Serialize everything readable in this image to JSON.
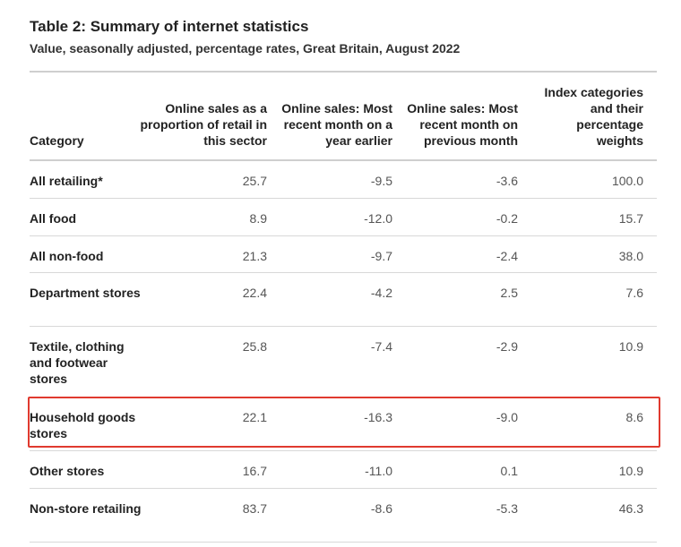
{
  "title": "Table 2: Summary of internet statistics",
  "subtitle": "Value, seasonally adjusted, percentage rates, Great Britain, August 2022",
  "table": {
    "headers": {
      "category": "Category",
      "col1": "Online sales as a proportion of retail in this sector",
      "col2": "Online sales: Most recent month on a year earlier",
      "col3": "Online sales: Most recent month on previous month",
      "col4": "Index categories and their percentage weights"
    },
    "rows": [
      {
        "category": "All retailing*",
        "col1": "25.7",
        "col2": "-9.5",
        "col3": "-3.6",
        "col4": "100.0"
      },
      {
        "category": "All food",
        "col1": "8.9",
        "col2": "-12.0",
        "col3": "-0.2",
        "col4": "15.7"
      },
      {
        "category": "All non-food",
        "col1": "21.3",
        "col2": "-9.7",
        "col3": "-2.4",
        "col4": "38.0"
      },
      {
        "category": "Department stores",
        "col1": "22.4",
        "col2": "-4.2",
        "col3": "2.5",
        "col4": "7.6"
      },
      {
        "category": "Textile, clothing and footwear stores",
        "col1": "25.8",
        "col2": "-7.4",
        "col3": "-2.9",
        "col4": "10.9"
      },
      {
        "category": "Household goods stores",
        "col1": "22.1",
        "col2": "-16.3",
        "col3": "-9.0",
        "col4": "8.6"
      },
      {
        "category": "Other stores",
        "col1": "16.7",
        "col2": "-11.0",
        "col3": "0.1",
        "col4": "10.9"
      },
      {
        "category": "Non-store retailing",
        "col1": "83.7",
        "col2": "-8.6",
        "col3": "-5.3",
        "col4": "46.3"
      }
    ],
    "highlighted_row": "Household goods stores",
    "highlight_color": "#e03a2f"
  }
}
